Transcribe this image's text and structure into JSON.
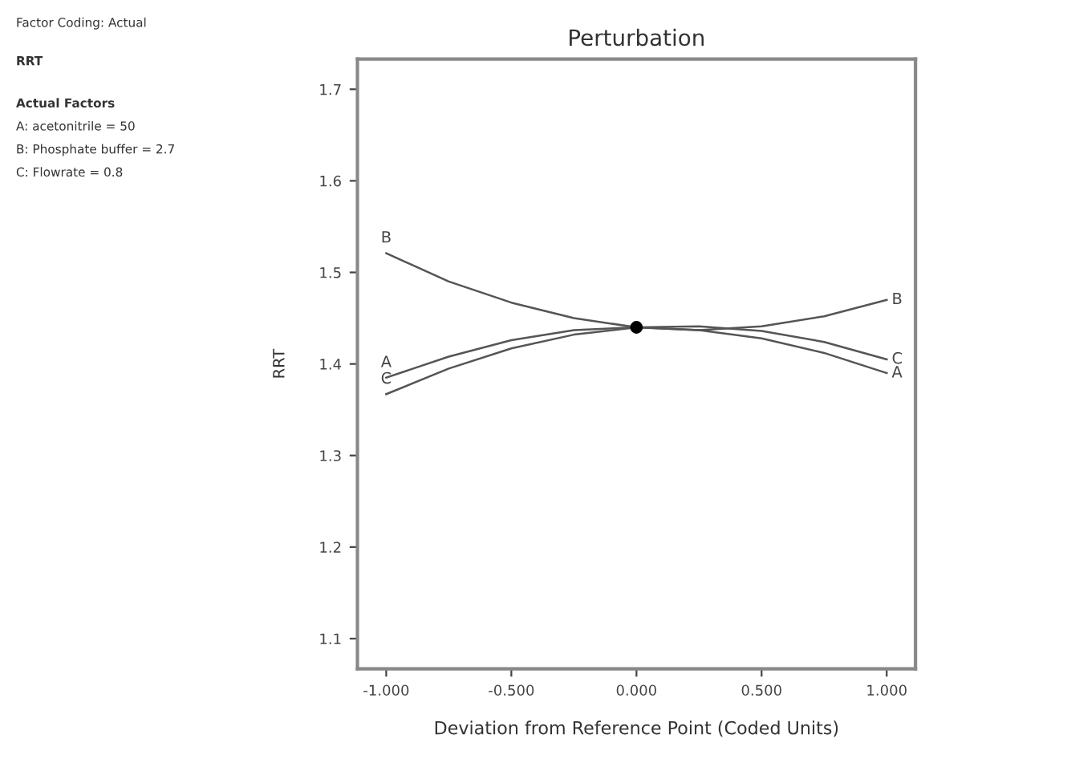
{
  "chart_data": {
    "type": "line",
    "title": "Perturbation",
    "xlabel": "Deviation from Reference Point (Coded Units)",
    "ylabel": "RRT",
    "x": [
      -1,
      -0.75,
      -0.5,
      -0.25,
      0,
      0.25,
      0.5,
      0.75,
      1
    ],
    "series": [
      {
        "name": "A",
        "color": "#555555",
        "values": [
          1.385,
          1.408,
          1.426,
          1.437,
          1.44,
          1.437,
          1.428,
          1.412,
          1.39
        ]
      },
      {
        "name": "B",
        "color": "#555555",
        "values": [
          1.521,
          1.49,
          1.467,
          1.45,
          1.44,
          1.437,
          1.441,
          1.452,
          1.47
        ]
      },
      {
        "name": "C",
        "color": "#555555",
        "values": [
          1.367,
          1.395,
          1.417,
          1.432,
          1.44,
          1.441,
          1.436,
          1.424,
          1.405
        ]
      },
      {
        "type": "scatter",
        "color": "#000000",
        "x": [
          0
        ],
        "values": [
          1.44
        ],
        "marker": "circle"
      }
    ],
    "xlim": [
      -1.115,
      1.115
    ],
    "ylim": [
      1.067,
      1.733
    ],
    "xticks": [
      {
        "value": -1,
        "label": "-1.000"
      },
      {
        "value": -0.5,
        "label": "-0.500"
      },
      {
        "value": 0,
        "label": "0.000"
      },
      {
        "value": 0.5,
        "label": "0.500"
      },
      {
        "value": 1,
        "label": "1.000"
      }
    ],
    "yticks": [
      1.1,
      1.2,
      1.3,
      1.4,
      1.5,
      1.6,
      1.7
    ],
    "grid": false,
    "legend": false,
    "marker": "none",
    "line_style": "solid",
    "annotations": [
      "Factor Coding: Actual",
      "RRT",
      "Actual Factors",
      "A: acetonitrile = 50",
      "B: Phosphate buffer = 2.7",
      "C: Flowrate = 0.8"
    ]
  }
}
